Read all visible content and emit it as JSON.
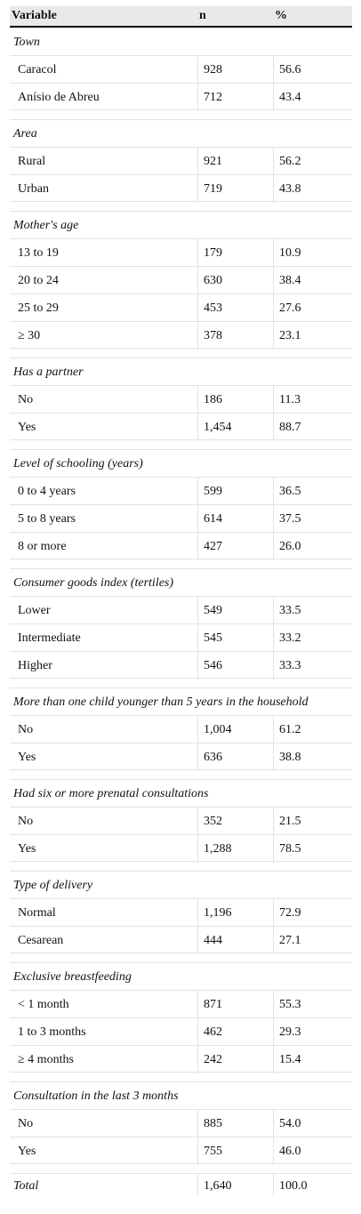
{
  "header": {
    "variable": "Variable",
    "n": "n",
    "pct": "%"
  },
  "groups": [
    {
      "label": "Town",
      "rows": [
        [
          "Caracol",
          "928",
          "56.6"
        ],
        [
          "Anísio de Abreu",
          "712",
          "43.4"
        ]
      ]
    },
    {
      "label": "Area",
      "rows": [
        [
          "Rural",
          "921",
          "56.2"
        ],
        [
          "Urban",
          "719",
          "43.8"
        ]
      ]
    },
    {
      "label": "Mother's age",
      "rows": [
        [
          "13 to 19",
          "179",
          "10.9"
        ],
        [
          "20 to 24",
          "630",
          "38.4"
        ],
        [
          "25 to 29",
          "453",
          "27.6"
        ],
        [
          "≥ 30",
          "378",
          "23.1"
        ]
      ]
    },
    {
      "label": "Has a partner",
      "rows": [
        [
          "No",
          "186",
          "11.3"
        ],
        [
          "Yes",
          "1,454",
          "88.7"
        ]
      ]
    },
    {
      "label": "Level of schooling (years)",
      "rows": [
        [
          "0 to 4 years",
          "599",
          "36.5"
        ],
        [
          "5 to 8 years",
          "614",
          "37.5"
        ],
        [
          "8 or more",
          "427",
          "26.0"
        ]
      ]
    },
    {
      "label": "Consumer goods index (tertiles)",
      "rows": [
        [
          "Lower",
          "549",
          "33.5"
        ],
        [
          "Intermediate",
          "545",
          "33.2"
        ],
        [
          "Higher",
          "546",
          "33.3"
        ]
      ]
    },
    {
      "label": "More than one child younger than 5 years in the household",
      "rows": [
        [
          "No",
          "1,004",
          "61.2"
        ],
        [
          "Yes",
          "636",
          "38.8"
        ]
      ]
    },
    {
      "label": "Had six or more prenatal consultations",
      "rows": [
        [
          "No",
          "352",
          "21.5"
        ],
        [
          "Yes",
          "1,288",
          "78.5"
        ]
      ]
    },
    {
      "label": "Type of delivery",
      "rows": [
        [
          "Normal",
          "1,196",
          "72.9"
        ],
        [
          "Cesarean",
          "444",
          "27.1"
        ]
      ]
    },
    {
      "label": "Exclusive breastfeeding",
      "rows": [
        [
          "< 1 month",
          "871",
          "55.3"
        ],
        [
          "1 to 3 months",
          "462",
          "29.3"
        ],
        [
          "≥ 4 months",
          "242",
          "15.4"
        ]
      ]
    },
    {
      "label": "Consultation in the last 3 months",
      "rows": [
        [
          "No",
          "885",
          "54.0"
        ],
        [
          "Yes",
          "755",
          "46.0"
        ]
      ]
    }
  ],
  "total": {
    "label": "Total",
    "n": "1,640",
    "pct": "100.0"
  }
}
